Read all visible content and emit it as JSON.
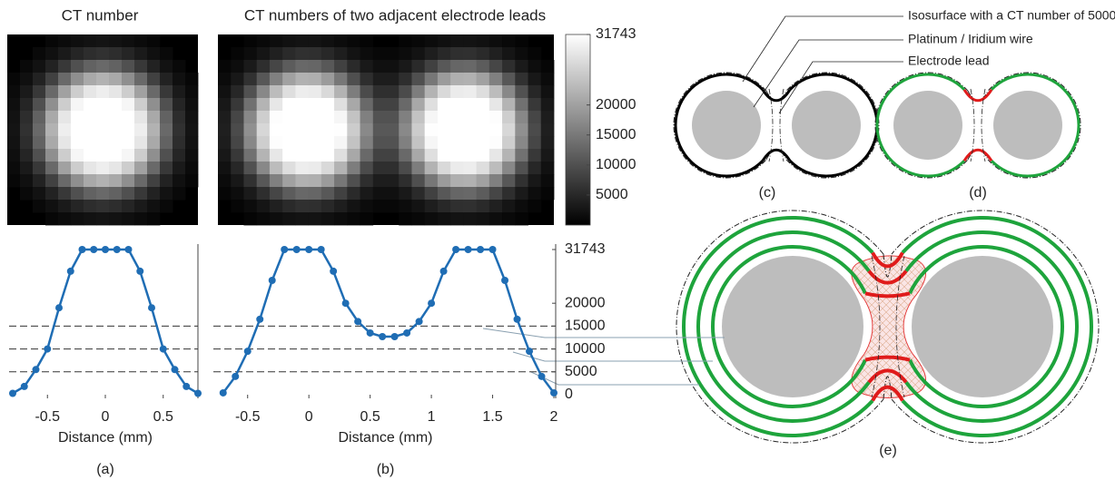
{
  "chart_data": [
    {
      "type": "line",
      "title": "CT number",
      "xlabel": "Distance (mm)",
      "panel_label": "(a)",
      "x": [
        -0.8,
        -0.7,
        -0.6,
        -0.5,
        -0.4,
        -0.3,
        -0.2,
        -0.1,
        0,
        0.1,
        0.2,
        0.3,
        0.4,
        0.5,
        0.6,
        0.7,
        0.8
      ],
      "series": [
        {
          "color": "#1f6db4",
          "values": [
            300,
            1800,
            5500,
            10000,
            19000,
            27000,
            31743,
            31743,
            31743,
            31743,
            31743,
            27000,
            19000,
            10000,
            5500,
            1800,
            300
          ]
        }
      ],
      "xlim": [
        -0.8,
        0.8
      ],
      "xticks": [
        -0.5,
        0,
        0.5
      ],
      "ylim": [
        0,
        31743
      ],
      "reference_lines": [
        5000,
        10000,
        15000
      ]
    },
    {
      "type": "line",
      "title": "CT numbers of two adjacent electrode leads",
      "xlabel": "Distance (mm)",
      "panel_label": "(b)",
      "x": [
        -0.7,
        -0.6,
        -0.5,
        -0.4,
        -0.3,
        -0.2,
        -0.1,
        0,
        0.1,
        0.2,
        0.3,
        0.4,
        0.5,
        0.6,
        0.7,
        0.8,
        0.9,
        1.0,
        1.1,
        1.2,
        1.3,
        1.4,
        1.5,
        1.6,
        1.7,
        1.8,
        1.9,
        2.0
      ],
      "series": [
        {
          "color": "#1f6db4",
          "values": [
            400,
            4000,
            9500,
            16500,
            25000,
            31743,
            31743,
            31743,
            31743,
            27000,
            20000,
            16000,
            13500,
            12700,
            12700,
            13500,
            16000,
            20000,
            27000,
            31743,
            31743,
            31743,
            31743,
            25000,
            16500,
            9500,
            4000,
            400
          ]
        }
      ],
      "xlim": [
        -0.75,
        2
      ],
      "xticks": [
        -0.5,
        0,
        0.5,
        1,
        1.5,
        2
      ],
      "ylim": [
        0,
        31743
      ],
      "yticks": [
        0,
        5000,
        10000,
        15000,
        20000,
        31743
      ],
      "reference_lines": [
        5000,
        10000,
        15000
      ]
    }
  ],
  "colorbar": {
    "lim": [
      0,
      31743
    ],
    "ticks": [
      5000,
      10000,
      15000,
      20000,
      31743
    ]
  },
  "diagram": {
    "labels": [
      "Isosurface with a CT number of 5000",
      "Platinum / Iridium wire",
      "Electrode lead"
    ],
    "panel_labels": [
      "(c)",
      "(d)",
      "(e)"
    ]
  }
}
